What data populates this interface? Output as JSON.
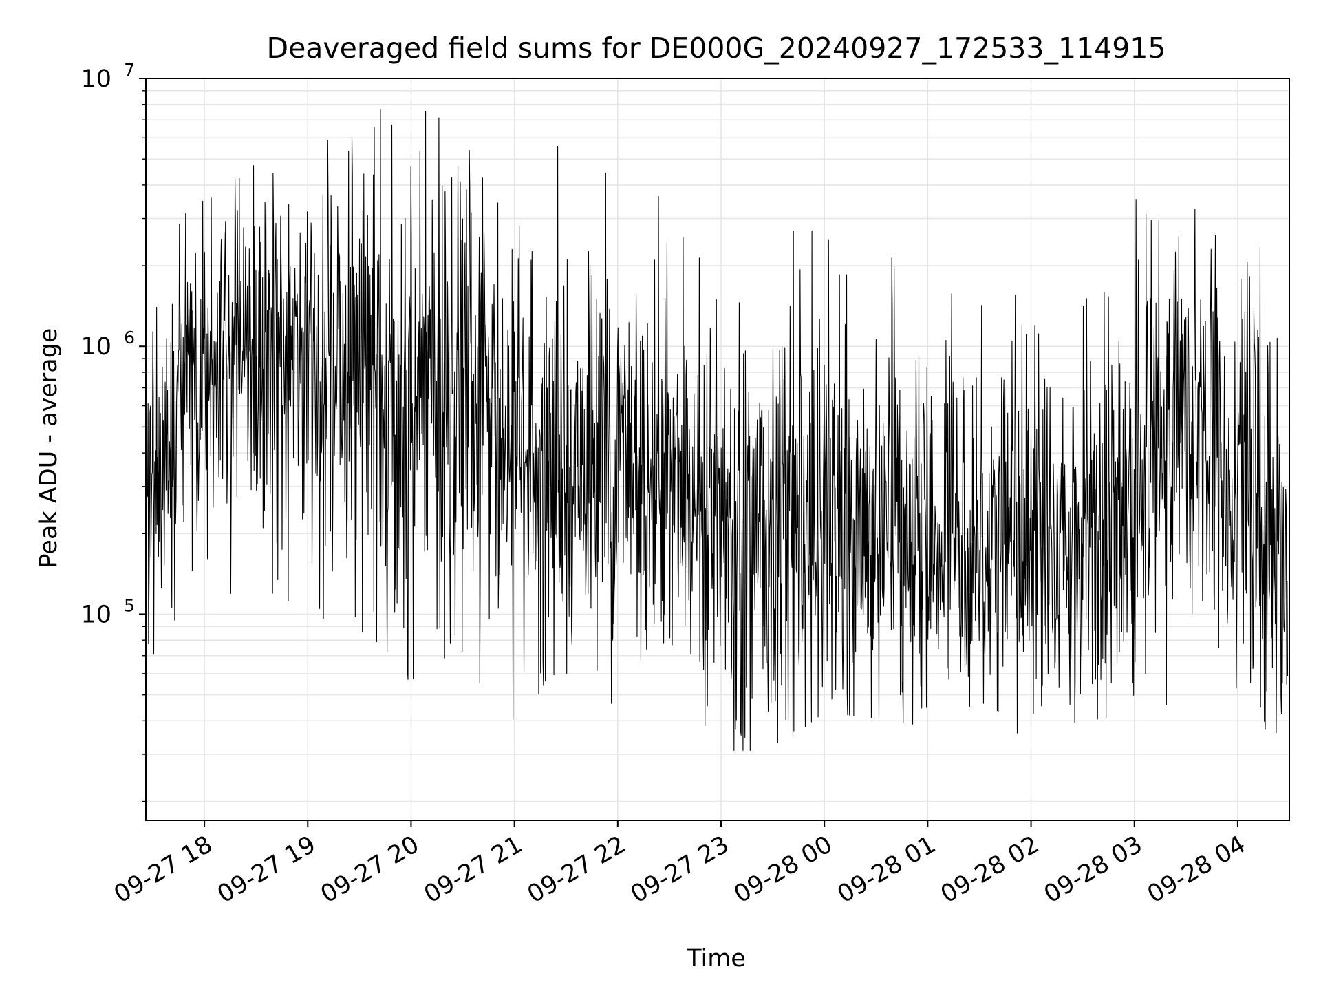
{
  "chart_data": {
    "type": "line",
    "title": "Deaveraged field sums for DE000G_20240927_172533_114915",
    "xlabel": "Time",
    "ylabel": "Peak ADU - average",
    "y_scale": "log",
    "ylim": [
      17000,
      10000000
    ],
    "xlim": [
      "2024-09-27 17:26",
      "2024-09-28 04:30"
    ],
    "grid": true,
    "line_color": "#000000",
    "grid_color": "#e6e6e6",
    "x_ticks": [
      {
        "value": "2024-09-27 18:00",
        "label": "09-27 18"
      },
      {
        "value": "2024-09-27 19:00",
        "label": "09-27 19"
      },
      {
        "value": "2024-09-27 20:00",
        "label": "09-27 20"
      },
      {
        "value": "2024-09-27 21:00",
        "label": "09-27 21"
      },
      {
        "value": "2024-09-27 22:00",
        "label": "09-27 22"
      },
      {
        "value": "2024-09-27 23:00",
        "label": "09-27 23"
      },
      {
        "value": "2024-09-28 00:00",
        "label": "09-28 00"
      },
      {
        "value": "2024-09-28 01:00",
        "label": "09-28 01"
      },
      {
        "value": "2024-09-28 02:00",
        "label": "09-28 02"
      },
      {
        "value": "2024-09-28 03:00",
        "label": "09-28 03"
      },
      {
        "value": "2024-09-28 04:00",
        "label": "09-28 04"
      }
    ],
    "y_ticks": [
      {
        "value": 100000,
        "base": "10",
        "exp": "5"
      },
      {
        "value": 1000000,
        "base": "10",
        "exp": "6"
      },
      {
        "value": 10000000,
        "base": "10",
        "exp": "7"
      }
    ],
    "x": [
      "2024-09-27 17:30",
      "2024-09-27 18:00",
      "2024-09-27 18:30",
      "2024-09-27 19:00",
      "2024-09-27 19:30",
      "2024-09-27 20:00",
      "2024-09-27 20:30",
      "2024-09-27 21:00",
      "2024-09-27 21:30",
      "2024-09-27 22:00",
      "2024-09-27 22:30",
      "2024-09-27 23:00",
      "2024-09-27 23:30",
      "2024-09-28 00:00",
      "2024-09-28 00:30",
      "2024-09-28 01:00",
      "2024-09-28 01:30",
      "2024-09-28 02:00",
      "2024-09-28 02:30",
      "2024-09-28 03:00",
      "2024-09-28 03:30",
      "2024-09-28 04:00",
      "2024-09-28 04:30"
    ],
    "y_median": [
      300000,
      800000,
      1000000,
      1000000,
      700000,
      600000,
      700000,
      350000,
      350000,
      380000,
      350000,
      230000,
      200000,
      200000,
      210000,
      200000,
      200000,
      190000,
      200000,
      280000,
      600000,
      350000,
      150000
    ],
    "y_max": [
      3000000,
      3500000,
      4800000,
      5000000,
      7600000,
      7700000,
      7200000,
      3000000,
      6300000,
      4300000,
      4000000,
      2500000,
      2700000,
      2700000,
      2200000,
      2000000,
      1900000,
      1700000,
      1700000,
      3700000,
      3300000,
      3300000,
      1700000
    ],
    "y_min": [
      70000,
      130000,
      100000,
      120000,
      58000,
      57000,
      57000,
      36000,
      58000,
      45000,
      61000,
      31000,
      31000,
      43000,
      41000,
      38000,
      36000,
      36000,
      40000,
      42000,
      46000,
      44000,
      32000
    ]
  }
}
